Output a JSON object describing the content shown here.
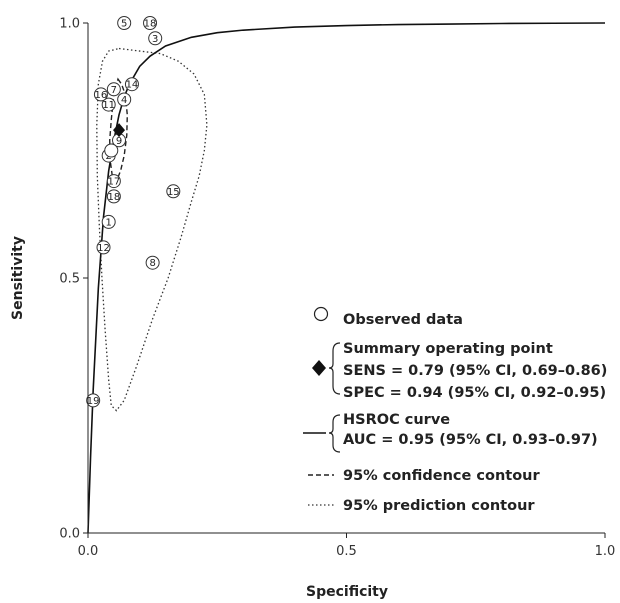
{
  "chart_data": {
    "type": "scatter",
    "xlabel": "Specificity",
    "ylabel": "Sensitivity",
    "xlim": [
      0.0,
      1.0
    ],
    "ylim": [
      0.0,
      1.0
    ],
    "x_ticks": [
      "0.0",
      "0.5",
      "1.0"
    ],
    "y_ticks": [
      "0.0",
      "0.5",
      "1.0"
    ],
    "grid": false,
    "legend_position": "bottom-right",
    "series": [
      {
        "name": "Observed data",
        "kind": "scatter",
        "points": [
          {
            "label": "1",
            "x": 0.04,
            "y": 0.61
          },
          {
            "label": "2",
            "x": 0.04,
            "y": 0.74
          },
          {
            "label": "3",
            "x": 0.13,
            "y": 0.97
          },
          {
            "label": "4",
            "x": 0.07,
            "y": 0.85
          },
          {
            "label": "5",
            "x": 0.07,
            "y": 1.0
          },
          {
            "label": "7",
            "x": 0.05,
            "y": 0.87
          },
          {
            "label": "8",
            "x": 0.125,
            "y": 0.53
          },
          {
            "label": "9",
            "x": 0.06,
            "y": 0.77
          },
          {
            "label": "11",
            "x": 0.04,
            "y": 0.84
          },
          {
            "label": "12",
            "x": 0.03,
            "y": 0.56
          },
          {
            "label": "14",
            "x": 0.085,
            "y": 0.88
          },
          {
            "label": "15",
            "x": 0.165,
            "y": 0.67
          },
          {
            "label": "16",
            "x": 0.025,
            "y": 0.86
          },
          {
            "label": "17",
            "x": 0.05,
            "y": 0.69
          },
          {
            "label": "18",
            "x": 0.05,
            "y": 0.66
          },
          {
            "label": "18",
            "x": 0.12,
            "y": 1.0
          },
          {
            "label": "19",
            "x": 0.01,
            "y": 0.26
          },
          {
            "label": "",
            "x": 0.045,
            "y": 0.75
          }
        ]
      },
      {
        "name": "Summary operating point",
        "kind": "point",
        "x": 0.06,
        "y": 0.79,
        "annotation_lines": [
          "Summary operating point",
          "SENS = 0.79 (95% CI, 0.69–0.86)",
          "SPEC = 0.94 (95% CI, 0.92–0.95)"
        ]
      },
      {
        "name": "HSROC curve",
        "kind": "line",
        "annotation_lines": [
          "HSROC curve",
          "AUC = 0.95 (95% CI, 0.93–0.97)"
        ],
        "x": [
          0.0,
          0.005,
          0.01,
          0.02,
          0.03,
          0.04,
          0.05,
          0.06,
          0.07,
          0.08,
          0.1,
          0.12,
          0.15,
          0.2,
          0.25,
          0.3,
          0.4,
          0.5,
          0.6,
          0.7,
          0.8,
          0.9,
          1.0
        ],
        "y": [
          0.0,
          0.15,
          0.28,
          0.48,
          0.62,
          0.71,
          0.77,
          0.82,
          0.855,
          0.88,
          0.915,
          0.935,
          0.955,
          0.972,
          0.981,
          0.986,
          0.992,
          0.995,
          0.997,
          0.998,
          0.999,
          0.9995,
          1.0
        ]
      },
      {
        "name": "95% confidence contour",
        "kind": "contour",
        "dash": "dashed",
        "x": [
          0.058,
          0.065,
          0.072,
          0.076,
          0.075,
          0.07,
          0.063,
          0.055,
          0.047,
          0.043,
          0.042,
          0.045,
          0.05,
          0.058
        ],
        "y": [
          0.89,
          0.88,
          0.86,
          0.82,
          0.78,
          0.74,
          0.71,
          0.69,
          0.7,
          0.73,
          0.77,
          0.81,
          0.86,
          0.89
        ]
      },
      {
        "name": "95% prediction contour",
        "kind": "contour",
        "dash": "dotted",
        "x": [
          0.06,
          0.1,
          0.14,
          0.175,
          0.205,
          0.225,
          0.23,
          0.225,
          0.215,
          0.2,
          0.18,
          0.155,
          0.125,
          0.095,
          0.07,
          0.055,
          0.045,
          0.04,
          0.033,
          0.027,
          0.022,
          0.018,
          0.017,
          0.02,
          0.028,
          0.04,
          0.06
        ],
        "y": [
          0.95,
          0.945,
          0.94,
          0.925,
          0.9,
          0.86,
          0.8,
          0.75,
          0.7,
          0.65,
          0.58,
          0.5,
          0.42,
          0.33,
          0.26,
          0.24,
          0.25,
          0.3,
          0.4,
          0.5,
          0.6,
          0.7,
          0.8,
          0.88,
          0.925,
          0.945,
          0.95
        ]
      }
    ]
  }
}
